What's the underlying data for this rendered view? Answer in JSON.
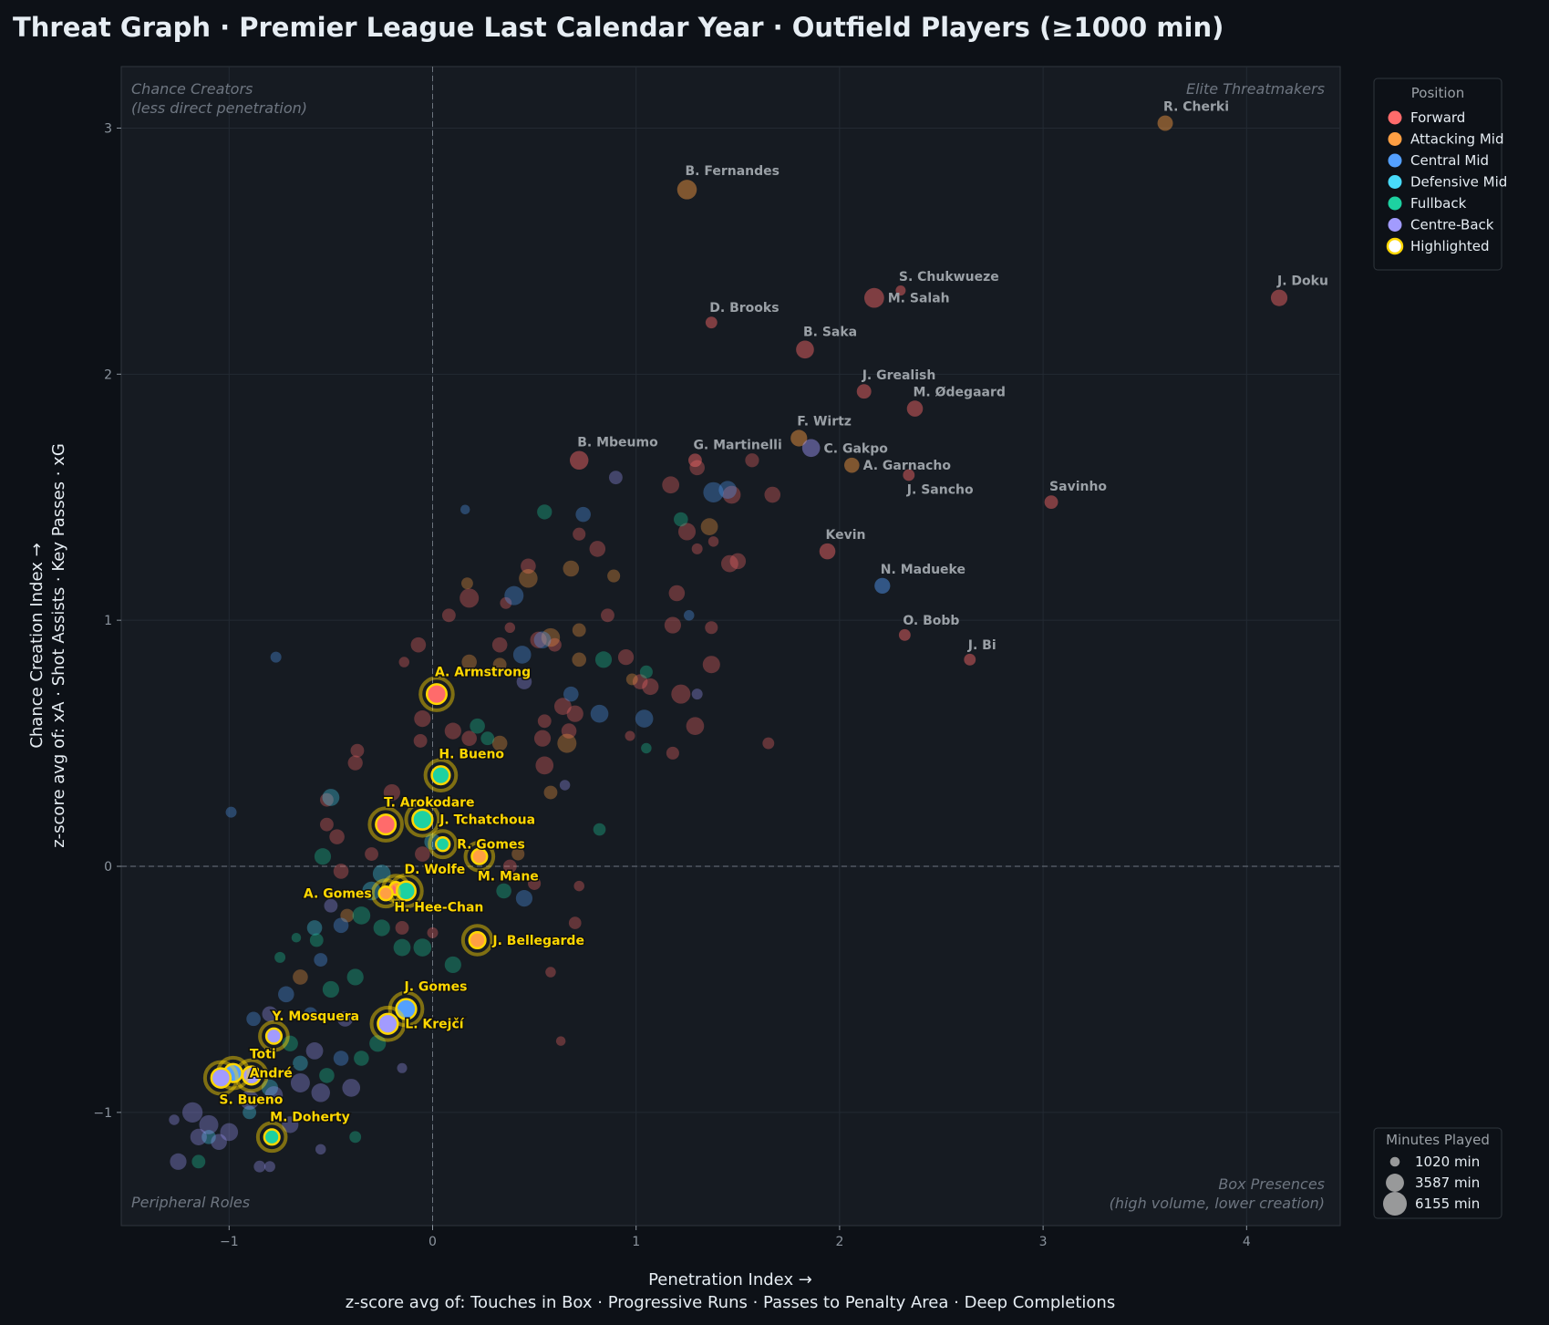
{
  "chart_data": {
    "type": "scatter",
    "title": "Threat Graph  ·  Premier League Last Calendar Year  ·  Outfield Players (≥1000 min)",
    "xlabel": "Penetration Index  →",
    "xlabel_sub": "z-score avg of: Touches in Box · Progressive Runs · Passes to Penalty Area · Deep Completions",
    "ylabel": "Chance Creation Index  →",
    "ylabel_sub": "z-score avg of: xA · Shot Assists · Key Passes · xG",
    "xlim": [
      -1.53,
      4.46
    ],
    "ylim": [
      -1.46,
      3.25
    ],
    "xticks": [
      -1,
      0,
      1,
      2,
      3,
      4
    ],
    "yticks": [
      -1,
      0,
      1,
      2,
      3
    ],
    "grid": true,
    "reference_lines": {
      "x": 0,
      "y": 0
    },
    "quadrants": {
      "top_left": [
        "Chance Creators",
        "(less direct penetration)"
      ],
      "top_right": [
        "Elite Threatmakers"
      ],
      "bottom_left": [
        "Peripheral Roles"
      ],
      "bottom_right": [
        "Box Presences",
        "(high volume, lower creation)"
      ]
    },
    "positions": [
      "Forward",
      "Attacking Mid",
      "Central Mid",
      "Defensive Mid",
      "Fullback",
      "Centre-Back"
    ],
    "position_colors": [
      "#ff6b6b",
      "#ff9f43",
      "#54a0ff",
      "#48dbfb",
      "#1dd1a1",
      "#a29bfe"
    ],
    "highlight_color": "#ffd700",
    "legend": {
      "title": "Position",
      "highlight_label": "Highlighted",
      "placement": "outside-top-right"
    },
    "size_legend": {
      "title": "Minutes Played",
      "values": [
        1020,
        3587,
        6155
      ],
      "unit": "min",
      "placement": "outside-bottom-right"
    },
    "labeled_players": [
      {
        "name": "R. Cherki",
        "x": 3.6,
        "y": 3.02,
        "pos": 1,
        "min": 2600
      },
      {
        "name": "B. Fernandes",
        "x": 1.25,
        "y": 2.75,
        "pos": 1,
        "min": 4200
      },
      {
        "name": "S. Chukwueze",
        "x": 2.3,
        "y": 2.34,
        "pos": 0,
        "min": 1100
      },
      {
        "name": "M. Salah",
        "x": 2.17,
        "y": 2.31,
        "pos": 0,
        "min": 4300
      },
      {
        "name": "J. Doku",
        "x": 4.16,
        "y": 2.31,
        "pos": 0,
        "min": 3000
      },
      {
        "name": "D. Brooks",
        "x": 1.37,
        "y": 2.21,
        "pos": 0,
        "min": 1500
      },
      {
        "name": "B. Saka",
        "x": 1.83,
        "y": 2.1,
        "pos": 0,
        "min": 3500
      },
      {
        "name": "J. Grealish",
        "x": 2.12,
        "y": 1.93,
        "pos": 0,
        "min": 2300
      },
      {
        "name": "M. Ødegaard",
        "x": 2.37,
        "y": 1.86,
        "pos": 0,
        "min": 2800
      },
      {
        "name": "F. Wirtz",
        "x": 1.8,
        "y": 1.74,
        "pos": 1,
        "min": 3000
      },
      {
        "name": "C. Gakpo",
        "x": 1.86,
        "y": 1.7,
        "pos": 5,
        "min": 3500
      },
      {
        "name": "B. Mbeumo",
        "x": 0.72,
        "y": 1.65,
        "pos": 0,
        "min": 3800
      },
      {
        "name": "G. Martinelli",
        "x": 1.29,
        "y": 1.65,
        "pos": 0,
        "min": 2000
      },
      {
        "name": "A. Garnacho",
        "x": 2.06,
        "y": 1.63,
        "pos": 1,
        "min": 2500
      },
      {
        "name": "J. Sancho",
        "x": 2.34,
        "y": 1.59,
        "pos": 0,
        "min": 1500
      },
      {
        "name": "Savinho",
        "x": 3.04,
        "y": 1.48,
        "pos": 0,
        "min": 2000
      },
      {
        "name": "Kevin",
        "x": 1.94,
        "y": 1.28,
        "pos": 0,
        "min": 2800
      },
      {
        "name": "N. Madueke",
        "x": 2.21,
        "y": 1.14,
        "pos": 2,
        "min": 2700
      },
      {
        "name": "O. Bobb",
        "x": 2.32,
        "y": 0.94,
        "pos": 0,
        "min": 1500
      },
      {
        "name": "J. Bi",
        "x": 2.64,
        "y": 0.84,
        "pos": 0,
        "min": 1500
      }
    ],
    "highlighted_players": [
      {
        "name": "A. Armstrong",
        "x": 0.02,
        "y": 0.7,
        "pos": 0,
        "min": 4200
      },
      {
        "name": "H. Bueno",
        "x": 0.04,
        "y": 0.37,
        "pos": 4,
        "min": 3500
      },
      {
        "name": "T. Arokodare",
        "x": -0.23,
        "y": 0.17,
        "pos": 0,
        "min": 4200
      },
      {
        "name": "J. Tchatchoua",
        "x": -0.05,
        "y": 0.19,
        "pos": 4,
        "min": 4300
      },
      {
        "name": "R. Gomes",
        "x": 0.05,
        "y": 0.09,
        "pos": 4,
        "min": 2000
      },
      {
        "name": "M. Mane",
        "x": 0.23,
        "y": 0.04,
        "pos": 1,
        "min": 2500
      },
      {
        "name": "H. Hee-Chan",
        "x": -0.18,
        "y": -0.09,
        "pos": 0,
        "min": 1800
      },
      {
        "name": "D. Wolfe",
        "x": -0.13,
        "y": -0.1,
        "pos": 4,
        "min": 3800
      },
      {
        "name": "A. Gomes",
        "x": -0.23,
        "y": -0.11,
        "pos": 1,
        "min": 2000
      },
      {
        "name": "J. Bellegarde",
        "x": 0.22,
        "y": -0.3,
        "pos": 1,
        "min": 2800
      },
      {
        "name": "J. Gomes",
        "x": -0.13,
        "y": -0.58,
        "pos": 2,
        "min": 4300
      },
      {
        "name": "L. Krejčí",
        "x": -0.22,
        "y": -0.64,
        "pos": 5,
        "min": 4300
      },
      {
        "name": "Y. Mosquera",
        "x": -0.78,
        "y": -0.69,
        "pos": 5,
        "min": 2500
      },
      {
        "name": "Toti",
        "x": -0.89,
        "y": -0.85,
        "pos": 5,
        "min": 3500
      },
      {
        "name": "André",
        "x": -0.98,
        "y": -0.84,
        "pos": 2,
        "min": 3500
      },
      {
        "name": "S. Bueno",
        "x": -1.04,
        "y": -0.86,
        "pos": 5,
        "min": 4000
      },
      {
        "name": "M. Doherty",
        "x": -0.79,
        "y": -1.1,
        "pos": 4,
        "min": 2500
      }
    ],
    "other_players": [
      [
        0.18,
        1.09,
        0,
        4000
      ],
      [
        0.47,
        1.22,
        0,
        2500
      ],
      [
        0.36,
        1.07,
        0,
        1500
      ],
      [
        0.08,
        1.02,
        0,
        2000
      ],
      [
        0.72,
        1.35,
        0,
        1800
      ],
      [
        0.81,
        1.29,
        0,
        2800
      ],
      [
        0.86,
        1.02,
        0,
        2000
      ],
      [
        0.38,
        0.97,
        0,
        1200
      ],
      [
        0.33,
        0.9,
        0,
        2500
      ],
      [
        0.6,
        0.9,
        0,
        2000
      ],
      [
        0.52,
        0.92,
        0,
        3000
      ],
      [
        -0.07,
        0.9,
        0,
        2500
      ],
      [
        -0.14,
        0.83,
        0,
        1200
      ],
      [
        0.95,
        0.85,
        0,
        2700
      ],
      [
        1.18,
        0.98,
        0,
        3000
      ],
      [
        1.2,
        1.11,
        0,
        2800
      ],
      [
        1.17,
        1.55,
        0,
        3200
      ],
      [
        1.3,
        1.62,
        0,
        2500
      ],
      [
        1.47,
        1.51,
        0,
        3500
      ],
      [
        1.67,
        1.51,
        0,
        2800
      ],
      [
        1.5,
        1.24,
        0,
        2800
      ],
      [
        1.46,
        1.23,
        0,
        3200
      ],
      [
        1.25,
        1.36,
        0,
        3300
      ],
      [
        1.38,
        1.32,
        0,
        1200
      ],
      [
        1.3,
        1.29,
        0,
        1300
      ],
      [
        1.57,
        1.65,
        0,
        2100
      ],
      [
        1.37,
        0.97,
        0,
        1800
      ],
      [
        1.37,
        0.82,
        0,
        3300
      ],
      [
        1.22,
        0.7,
        0,
        4000
      ],
      [
        1.29,
        0.57,
        0,
        3500
      ],
      [
        1.02,
        0.75,
        0,
        2500
      ],
      [
        1.07,
        0.73,
        0,
        3000
      ],
      [
        0.97,
        0.53,
        0,
        1100
      ],
      [
        1.18,
        0.46,
        0,
        1800
      ],
      [
        1.65,
        0.5,
        0,
        1500
      ],
      [
        0.64,
        0.65,
        0,
        3200
      ],
      [
        0.7,
        0.62,
        0,
        3000
      ],
      [
        0.54,
        0.52,
        0,
        3000
      ],
      [
        0.55,
        0.41,
        0,
        3500
      ],
      [
        0.67,
        0.55,
        0,
        2500
      ],
      [
        0.55,
        0.59,
        0,
        2000
      ],
      [
        0.1,
        0.55,
        0,
        3000
      ],
      [
        0.18,
        0.52,
        0,
        2500
      ],
      [
        -0.05,
        0.6,
        0,
        3000
      ],
      [
        -0.06,
        0.51,
        0,
        2000
      ],
      [
        -0.37,
        0.47,
        0,
        2000
      ],
      [
        -0.38,
        0.42,
        0,
        2400
      ],
      [
        -0.2,
        0.3,
        0,
        3000
      ],
      [
        -0.52,
        0.27,
        0,
        2000
      ],
      [
        -0.47,
        0.12,
        0,
        2500
      ],
      [
        -0.52,
        0.17,
        0,
        2000
      ],
      [
        -0.3,
        0.05,
        0,
        2000
      ],
      [
        -0.05,
        0.05,
        0,
        2500
      ],
      [
        0.38,
        0.0,
        0,
        2000
      ],
      [
        0.5,
        -0.07,
        0,
        1800
      ],
      [
        0.72,
        -0.08,
        0,
        1200
      ],
      [
        0.7,
        -0.23,
        0,
        1700
      ],
      [
        0.58,
        -0.43,
        0,
        1200
      ],
      [
        0.63,
        -0.71,
        0,
        1000
      ],
      [
        -0.45,
        -0.02,
        0,
        2500
      ],
      [
        -0.15,
        -0.25,
        0,
        2000
      ],
      [
        0.0,
        -0.27,
        0,
        1300
      ],
      [
        0.17,
        1.15,
        1,
        1500
      ],
      [
        0.47,
        1.17,
        1,
        3800
      ],
      [
        0.68,
        1.21,
        1,
        2800
      ],
      [
        0.89,
        1.18,
        1,
        1800
      ],
      [
        0.58,
        0.93,
        1,
        3800
      ],
      [
        0.72,
        0.96,
        1,
        2000
      ],
      [
        0.18,
        0.83,
        1,
        2500
      ],
      [
        0.33,
        0.82,
        1,
        2000
      ],
      [
        0.72,
        0.84,
        1,
        2200
      ],
      [
        0.98,
        0.76,
        1,
        1500
      ],
      [
        1.36,
        1.38,
        1,
        3200
      ],
      [
        0.66,
        0.5,
        1,
        4000
      ],
      [
        0.33,
        0.5,
        1,
        2500
      ],
      [
        0.58,
        0.3,
        1,
        2000
      ],
      [
        0.42,
        0.05,
        1,
        1800
      ],
      [
        -0.42,
        -0.2,
        1,
        2000
      ],
      [
        -0.65,
        -0.45,
        1,
        2500
      ],
      [
        0.74,
        1.43,
        2,
        2500
      ],
      [
        0.4,
        1.1,
        2,
        4000
      ],
      [
        1.38,
        1.52,
        2,
        4500
      ],
      [
        1.45,
        1.53,
        2,
        3500
      ],
      [
        0.44,
        0.86,
        2,
        3500
      ],
      [
        0.54,
        0.92,
        2,
        3200
      ],
      [
        0.82,
        0.62,
        2,
        3500
      ],
      [
        1.04,
        0.6,
        2,
        3500
      ],
      [
        0.68,
        0.7,
        2,
        2500
      ],
      [
        -0.77,
        0.85,
        2,
        1300
      ],
      [
        -0.99,
        0.22,
        2,
        1300
      ],
      [
        0.16,
        1.45,
        2,
        1000
      ],
      [
        1.26,
        1.02,
        2,
        1200
      ],
      [
        0.45,
        -0.13,
        2,
        3000
      ],
      [
        -0.45,
        -0.24,
        2,
        2500
      ],
      [
        -0.55,
        -0.38,
        2,
        2000
      ],
      [
        -0.72,
        -0.52,
        2,
        2800
      ],
      [
        -0.6,
        -0.6,
        2,
        2000
      ],
      [
        -0.45,
        -0.78,
        2,
        2500
      ],
      [
        -0.88,
        -0.62,
        2,
        2200
      ],
      [
        -0.5,
        0.28,
        3,
        3200
      ],
      [
        -0.25,
        -0.03,
        3,
        3500
      ],
      [
        -0.3,
        -0.1,
        3,
        3800
      ],
      [
        0.0,
        0.1,
        3,
        3000
      ],
      [
        -0.58,
        -0.25,
        3,
        2500
      ],
      [
        -0.8,
        -0.9,
        3,
        3000
      ],
      [
        -0.65,
        -0.8,
        3,
        2500
      ],
      [
        -1.1,
        -1.1,
        3,
        2200
      ],
      [
        -0.9,
        -1.0,
        3,
        2000
      ],
      [
        0.55,
        1.44,
        4,
        2400
      ],
      [
        1.22,
        1.41,
        4,
        2200
      ],
      [
        1.05,
        0.79,
        4,
        1800
      ],
      [
        0.84,
        0.84,
        4,
        3000
      ],
      [
        1.05,
        0.48,
        4,
        1200
      ],
      [
        0.82,
        0.15,
        4,
        1700
      ],
      [
        0.27,
        0.52,
        4,
        2000
      ],
      [
        0.22,
        0.57,
        4,
        2500
      ],
      [
        -0.54,
        0.04,
        4,
        3000
      ],
      [
        -0.35,
        -0.2,
        4,
        3500
      ],
      [
        -0.15,
        -0.33,
        4,
        3200
      ],
      [
        -0.05,
        -0.33,
        4,
        3500
      ],
      [
        0.1,
        -0.4,
        4,
        3000
      ],
      [
        -0.25,
        -0.25,
        4,
        3000
      ],
      [
        0.35,
        -0.1,
        4,
        2500
      ],
      [
        -0.57,
        -0.3,
        4,
        2000
      ],
      [
        -0.38,
        -0.45,
        4,
        3000
      ],
      [
        -0.5,
        -0.5,
        4,
        3000
      ],
      [
        -0.27,
        -0.72,
        4,
        3000
      ],
      [
        -0.35,
        -0.78,
        4,
        2500
      ],
      [
        -0.7,
        -0.72,
        4,
        2700
      ],
      [
        -0.75,
        -0.37,
        4,
        1300
      ],
      [
        -0.67,
        -0.29,
        4,
        1000
      ],
      [
        -1.15,
        -1.2,
        4,
        2000
      ],
      [
        -0.52,
        -0.85,
        4,
        2500
      ],
      [
        -0.38,
        -1.1,
        4,
        1500
      ],
      [
        -1.25,
        -1.2,
        5,
        3000
      ],
      [
        -1.18,
        -1.0,
        5,
        4500
      ],
      [
        -1.1,
        -1.05,
        5,
        4000
      ],
      [
        -1.0,
        -1.08,
        5,
        3500
      ],
      [
        -0.9,
        -0.95,
        5,
        4000
      ],
      [
        -0.78,
        -0.93,
        5,
        3500
      ],
      [
        -0.65,
        -0.88,
        5,
        4000
      ],
      [
        -0.55,
        -0.92,
        5,
        3800
      ],
      [
        -0.4,
        -0.9,
        5,
        3500
      ],
      [
        -0.58,
        -0.75,
        5,
        3200
      ],
      [
        -0.7,
        -1.05,
        5,
        3000
      ],
      [
        -0.85,
        -1.22,
        5,
        1500
      ],
      [
        -0.8,
        -1.22,
        5,
        1300
      ],
      [
        -1.05,
        -1.12,
        5,
        2800
      ],
      [
        -1.15,
        -1.1,
        5,
        3000
      ],
      [
        -1.27,
        -1.03,
        5,
        1200
      ],
      [
        -0.55,
        -1.15,
        5,
        1200
      ],
      [
        -0.5,
        -0.16,
        5,
        2000
      ],
      [
        -0.15,
        -0.82,
        5,
        1100
      ],
      [
        -0.43,
        -0.62,
        5,
        2600
      ],
      [
        0.65,
        0.33,
        5,
        1200
      ],
      [
        0.45,
        0.75,
        5,
        2500
      ],
      [
        1.3,
        0.7,
        5,
        1300
      ],
      [
        0.9,
        1.58,
        5,
        2000
      ],
      [
        -0.8,
        -0.6,
        5,
        2600
      ]
    ]
  }
}
